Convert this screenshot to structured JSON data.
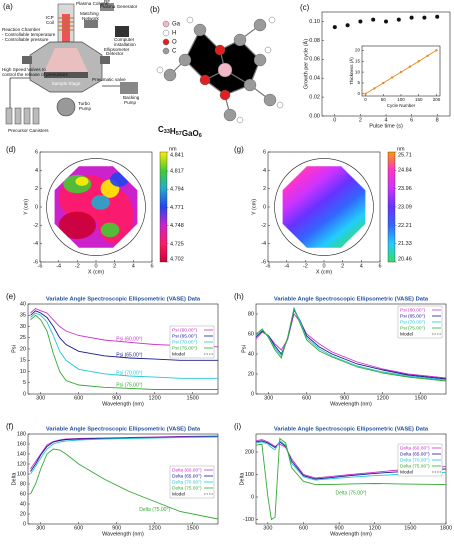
{
  "diagram": {
    "label": "(a)",
    "plasma_column": "Plasma Column",
    "rf_generator": [
      "RF",
      "Plasma Generator"
    ],
    "icp_coil": [
      "ICP",
      "Coil"
    ],
    "matching_network": [
      "Matching",
      "Network"
    ],
    "computer": [
      "Computer",
      "installation"
    ],
    "reaction_chamber": [
      "Reaction Chamber",
      "- Controllable temperature",
      "- Controllable pressure"
    ],
    "ellipsometer": [
      "Ellipsometer",
      "Detector"
    ],
    "sample_stage": "Sample Stage",
    "pneumatic_valve": "Pneumatic valve",
    "high_speed_valves": [
      "High Speed Valves to",
      "control the release of precursors"
    ],
    "backing_pump": [
      "Backing",
      "Pump"
    ],
    "turbo_pump": [
      "Turbo",
      "Pump"
    ],
    "precursor_canisters": "Precursor Canisters"
  },
  "molecule": {
    "label": "(b)",
    "legend": [
      {
        "name": "Ga",
        "color": "#f2b8c6"
      },
      {
        "name": "H",
        "color": "#ffffff"
      },
      {
        "name": "O",
        "color": "#e02020"
      },
      {
        "name": "C",
        "color": "#9a9a9a"
      }
    ],
    "formula": [
      [
        "C",
        "33"
      ],
      [
        "H",
        "57"
      ],
      [
        "Ga"
      ],
      [
        "O",
        "6"
      ]
    ]
  },
  "chart_data": [
    {
      "type": "scatter",
      "label": "(c)",
      "x_label": "Pulse time (s)",
      "y_label": "Growth per cycle (Å)",
      "x": [
        0,
        1,
        2,
        3,
        4,
        5,
        6,
        7,
        8
      ],
      "values": [
        0.094,
        0.096,
        0.1,
        0.102,
        0.1,
        0.102,
        0.104,
        0.104,
        0.105
      ],
      "color": "#111111",
      "xlim": [
        -1,
        9
      ],
      "ylim": [
        0,
        0.11
      ],
      "xticks": [
        0,
        2,
        4,
        6,
        8
      ],
      "yticks": [
        {
          "value": 0,
          "label": "0.00"
        },
        0.02,
        0.04,
        0.06,
        0.08,
        {
          "value": 0.1,
          "label": "0.10"
        }
      ]
    },
    {
      "type": "line",
      "x_label": "Cycle Number",
      "y_label": "Thickness (Å)",
      "x": [
        0,
        25,
        50,
        75,
        100,
        125,
        150,
        175,
        200
      ],
      "series": [
        {
          "name": "Thickness",
          "color": "#e8891c",
          "values": [
            0,
            2.5,
            5,
            7.5,
            10,
            12.5,
            15,
            17.5,
            20
          ]
        }
      ],
      "markers": true,
      "xlim": [
        -10,
        210
      ],
      "ylim": [
        -1,
        22
      ],
      "xticks": [
        0,
        50,
        100,
        150,
        200
      ],
      "yticks": [
        0,
        5,
        10,
        15,
        20
      ]
    },
    {
      "type": "contour",
      "label": "(d)",
      "x_label": "X (cm)",
      "y_label": "Y (cm)",
      "xlim": [
        -6,
        6
      ],
      "ylim": [
        -6,
        6
      ],
      "xticks": [
        -6,
        -4,
        -2,
        0,
        2,
        4,
        6
      ],
      "yticks": [
        -6,
        -4,
        -2,
        0,
        2,
        4,
        6
      ],
      "cbar_label": "nm",
      "clim": [
        4.702,
        4.841
      ],
      "cticks": [
        4.841,
        4.817,
        4.794,
        4.771,
        4.748,
        4.725,
        4.702
      ],
      "colormap": [
        "#ffee00",
        "#44cc33",
        "#22aacc",
        "#2244ee",
        "#cc22cc",
        "#ff1a66",
        "#cc0033"
      ]
    },
    {
      "type": "contour",
      "label": "(g)",
      "x_label": "X (cm)",
      "y_label": "Y (cm)",
      "xlim": [
        -6,
        6
      ],
      "ylim": [
        -6,
        6
      ],
      "xticks": [
        -6,
        -4,
        -2,
        0,
        2,
        4,
        6
      ],
      "yticks": [
        -6,
        -4,
        -2,
        0,
        2,
        4,
        6
      ],
      "cbar_label": "nm",
      "clim": [
        20.46,
        25.71
      ],
      "cticks": [
        25.71,
        24.84,
        23.96,
        23.09,
        22.21,
        21.33,
        20.46
      ],
      "colormap": [
        "#ff9900",
        "#ff33cc",
        "#cc33ff",
        "#6633ff",
        "#3366ff",
        "#22ccff",
        "#33dd66"
      ]
    },
    {
      "type": "line",
      "label": "(e)",
      "title": "Variable Angle Spectroscopic Ellipsometric (VASE) Data",
      "x_label": "Wavelength (nm)",
      "y_label": "Psi",
      "x": [
        220,
        260,
        300,
        350,
        400,
        450,
        500,
        600,
        800,
        1000,
        1200,
        1400,
        1700
      ],
      "series": [
        {
          "name": "Psi (60.00°)",
          "color": "#cc33cc",
          "inline_label": true,
          "values": [
            36,
            38,
            37,
            36,
            33,
            30,
            28,
            26,
            24,
            23,
            22,
            21.5,
            21
          ]
        },
        {
          "name": "Psi (65.00°)",
          "color": "#1a1a8c",
          "inline_label": true,
          "values": [
            35,
            37,
            36,
            34,
            30,
            25,
            22,
            19,
            17,
            16,
            15.5,
            15,
            15
          ]
        },
        {
          "name": "Psi (70.00°)",
          "color": "#22c7d6",
          "inline_label": true,
          "values": [
            34,
            36,
            35,
            32,
            26,
            19,
            15,
            11,
            9,
            8,
            7.5,
            7,
            7
          ]
        },
        {
          "name": "Psi (75.00°)",
          "color": "#33aa33",
          "inline_label": true,
          "values": [
            33,
            35,
            33,
            28,
            18,
            10,
            6,
            4,
            3,
            2.5,
            2,
            2,
            2
          ]
        }
      ],
      "model": {
        "name": "Model",
        "dash": true
      },
      "xlim": [
        200,
        1700
      ],
      "ylim": [
        0,
        40
      ],
      "xticks": [
        300,
        600,
        900,
        1200,
        1500
      ],
      "yticks": [
        0,
        5,
        10,
        15,
        20,
        25,
        30,
        35,
        40
      ]
    },
    {
      "type": "line",
      "label": "(h)",
      "title": "Variable Angle Spectroscopic Ellipsometric (VASE) Data",
      "x_label": "Wavelength (nm)",
      "y_label": "Psi",
      "x": [
        200,
        250,
        300,
        350,
        400,
        450,
        500,
        550,
        600,
        700,
        800,
        1000,
        1200,
        1400,
        1700
      ],
      "series": [
        {
          "name": "Psi (60.00°)",
          "color": "#cc33cc",
          "values": [
            55,
            62,
            58,
            50,
            44,
            55,
            80,
            72,
            60,
            50,
            42,
            32,
            25,
            20,
            16
          ]
        },
        {
          "name": "Psi (65.00°)",
          "color": "#1a1a8c",
          "values": [
            57,
            63,
            58,
            48,
            40,
            55,
            84,
            73,
            58,
            47,
            40,
            30,
            24,
            19,
            15
          ]
        },
        {
          "name": "Psi (70.00°)",
          "color": "#22c7d6",
          "values": [
            58,
            64,
            57,
            46,
            38,
            56,
            86,
            72,
            56,
            45,
            38,
            28,
            22,
            18,
            14
          ]
        },
        {
          "name": "Psi (75.00°)",
          "color": "#33aa33",
          "values": [
            60,
            65,
            56,
            44,
            36,
            57,
            85,
            70,
            54,
            43,
            37,
            27,
            21,
            17,
            13
          ]
        }
      ],
      "model": {
        "name": "Model",
        "dash": true
      },
      "xlim": [
        200,
        1700
      ],
      "ylim": [
        0,
        90
      ],
      "xticks": [
        300,
        600,
        900,
        1200,
        1500
      ],
      "yticks": [
        0,
        20,
        40,
        60,
        80
      ]
    },
    {
      "type": "line",
      "label": "(f)",
      "title": "Variable Angle Spectroscopic Ellipsometric (VASE) Data",
      "x_label": "Wavelength (nm)",
      "y_label": "Delta",
      "x": [
        220,
        260,
        300,
        350,
        400,
        450,
        500,
        600,
        800,
        1000,
        1200,
        1400,
        1700
      ],
      "series": [
        {
          "name": "Delta (60.00°)",
          "color": "#cc33cc",
          "values": [
            110,
            125,
            140,
            158,
            165,
            168,
            170,
            171,
            172,
            173,
            174,
            175,
            176
          ]
        },
        {
          "name": "Delta (65.00°)",
          "color": "#1a1a8c",
          "values": [
            105,
            120,
            138,
            155,
            164,
            167,
            169,
            170,
            171,
            172,
            173,
            174,
            175
          ]
        },
        {
          "name": "Delta (70.00°)",
          "color": "#22c7d6",
          "values": [
            100,
            115,
            132,
            150,
            160,
            164,
            166,
            168,
            170,
            171,
            172,
            173,
            174
          ]
        },
        {
          "name": "Delta (75.00°)",
          "color": "#33aa33",
          "inline_label": true,
          "values": [
            60,
            80,
            110,
            140,
            150,
            148,
            140,
            120,
            90,
            65,
            45,
            25,
            10
          ]
        }
      ],
      "model": {
        "name": "Model",
        "dash": true
      },
      "xlim": [
        200,
        1700
      ],
      "ylim": [
        0,
        180
      ],
      "xticks": [
        300,
        600,
        900,
        1200,
        1500
      ],
      "yticks": [
        0,
        20,
        40,
        60,
        80,
        100,
        120,
        140,
        160,
        180
      ]
    },
    {
      "type": "line",
      "label": "(i)",
      "title": "Variable Angle Spectroscopic Ellipsometric (VASE) Data",
      "x_label": "Wavelength (nm)",
      "y_label": "Delta",
      "x": [
        200,
        250,
        300,
        330,
        360,
        400,
        450,
        500,
        600,
        700,
        800,
        1000,
        1200,
        1400,
        1800
      ],
      "series": [
        {
          "name": "Delta (60.00°)",
          "color": "#cc33cc",
          "values": [
            250,
            255,
            245,
            235,
            225,
            235,
            220,
            170,
            100,
            85,
            90,
            100,
            110,
            120,
            135
          ]
        },
        {
          "name": "Delta (65.00°)",
          "color": "#1a1a8c",
          "values": [
            245,
            250,
            240,
            230,
            220,
            245,
            225,
            160,
            95,
            80,
            85,
            95,
            105,
            112,
            125
          ]
        },
        {
          "name": "Delta (70.00°)",
          "color": "#22c7d6",
          "values": [
            240,
            245,
            235,
            220,
            210,
            250,
            230,
            150,
            90,
            75,
            80,
            88,
            95,
            100,
            110
          ]
        },
        {
          "name": "Delta (75.00°)",
          "color": "#33aa33",
          "inline_label": true,
          "values": [
            230,
            235,
            0,
            -100,
            -90,
            260,
            240,
            130,
            70,
            55,
            55,
            58,
            60,
            58,
            55
          ]
        }
      ],
      "model": {
        "name": "Model",
        "dash": true
      },
      "xlim": [
        200,
        1800
      ],
      "ylim": [
        -120,
        280
      ],
      "xticks": [
        300,
        600,
        900,
        1200,
        1500,
        1800
      ],
      "yticks": [
        -100,
        0,
        100,
        200
      ]
    }
  ]
}
